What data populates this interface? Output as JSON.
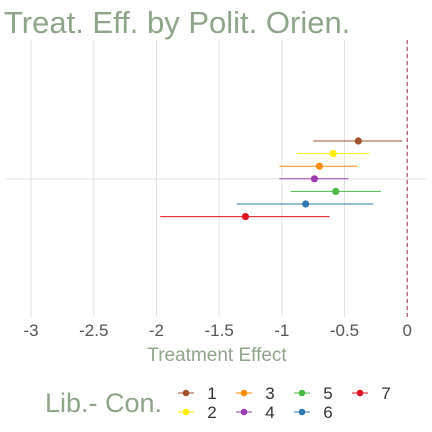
{
  "chart_data": {
    "type": "scatter",
    "title": "Treat. Eff. by Polit. Orien.",
    "xlabel": "Treatment Effect",
    "ylabel": "",
    "xlim": [
      -3.2,
      0.15
    ],
    "x_ticks": [
      -3,
      -2.5,
      -2,
      -1.5,
      -1,
      -0.5,
      0
    ],
    "x_tick_labels": [
      "-3",
      "-2.5",
      "-2",
      "-1.5",
      "-1",
      "-0.5",
      "0"
    ],
    "reference_line": {
      "x": 0,
      "style": "dashed",
      "color": "#a0305a"
    },
    "legend": {
      "title": "Lib.- Con.",
      "placement": "bottom"
    },
    "colors": {
      "title": "#8fa58a",
      "axis_label": "#8fa58a",
      "legend_title": "#8fa58a",
      "tick": "#555555",
      "grid": "#e0e0e0"
    },
    "series": [
      {
        "name": "1",
        "estimate": -0.39,
        "ci": [
          -0.75,
          -0.04
        ],
        "color": "#a0522d"
      },
      {
        "name": "2",
        "estimate": -0.59,
        "ci": [
          -0.88,
          -0.3
        ],
        "color": "#ffee00"
      },
      {
        "name": "3",
        "estimate": -0.7,
        "ci": [
          -1.02,
          -0.4
        ],
        "color": "#ff8c00"
      },
      {
        "name": "4",
        "estimate": -0.74,
        "ci": [
          -1.02,
          -0.47
        ],
        "color": "#9b3fb0"
      },
      {
        "name": "5",
        "estimate": -0.57,
        "ci": [
          -0.93,
          -0.21
        ],
        "color": "#4cb849"
      },
      {
        "name": "6",
        "estimate": -0.81,
        "ci": [
          -1.36,
          -0.27
        ],
        "color": "#2f78b0"
      },
      {
        "name": "7",
        "estimate": -1.29,
        "ci": [
          -1.97,
          -0.62
        ],
        "color": "#e0141e"
      }
    ]
  }
}
